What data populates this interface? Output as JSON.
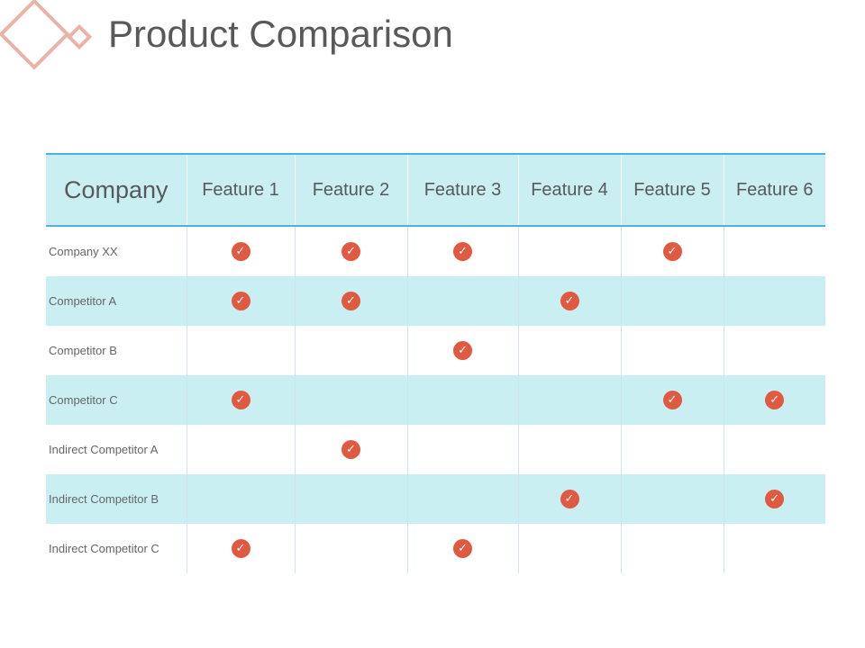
{
  "title": "Product Comparison",
  "colors": {
    "accent_logo": "#eab3a8",
    "header_bg": "#c9eff2",
    "row_shade": "#c9eff2",
    "check_fill": "#e05a41",
    "text": "#595959",
    "divider": "#4fb3d9"
  },
  "table": {
    "company_header": "Company",
    "features": [
      "Feature 1",
      "Feature 2",
      "Feature 3",
      "Feature 4",
      "Feature 5",
      "Feature 6"
    ],
    "check_icon": "checkmark-circle-icon",
    "rows": [
      {
        "name": "Company XX",
        "checks": [
          true,
          true,
          true,
          false,
          true,
          false
        ]
      },
      {
        "name": "Competitor A",
        "checks": [
          true,
          true,
          false,
          true,
          false,
          false
        ]
      },
      {
        "name": "Competitor B",
        "checks": [
          false,
          false,
          true,
          false,
          false,
          false
        ]
      },
      {
        "name": "Competitor C",
        "checks": [
          true,
          false,
          false,
          false,
          true,
          true
        ]
      },
      {
        "name": "Indirect Competitor A",
        "checks": [
          false,
          true,
          false,
          false,
          false,
          false
        ]
      },
      {
        "name": "Indirect Competitor B",
        "checks": [
          false,
          false,
          false,
          true,
          false,
          true
        ]
      },
      {
        "name": "Indirect Competitor C",
        "checks": [
          true,
          false,
          true,
          false,
          false,
          false
        ]
      }
    ]
  }
}
